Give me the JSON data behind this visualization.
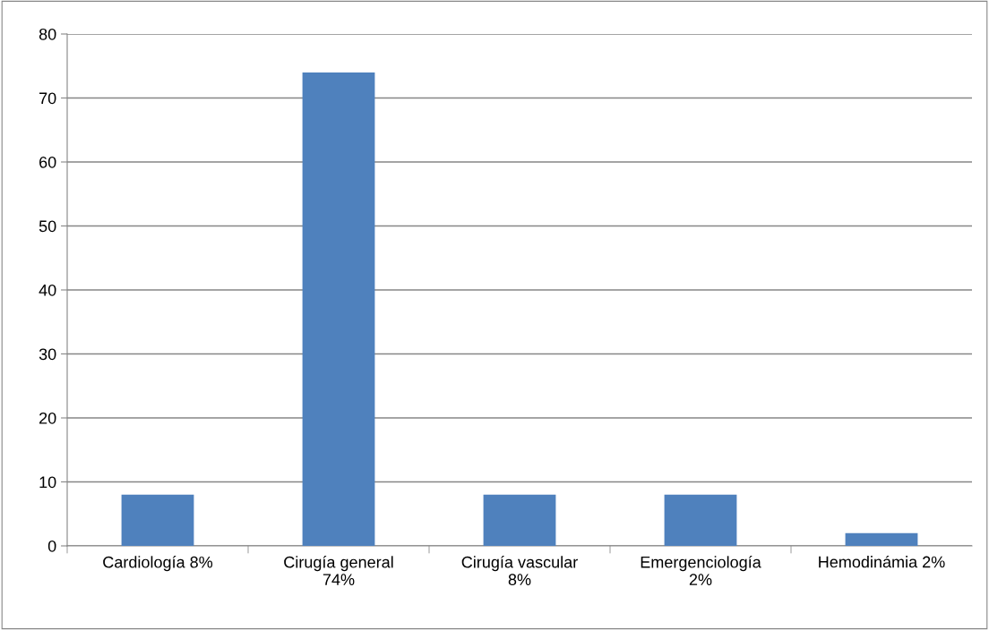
{
  "chart_data": {
    "type": "bar",
    "categories": [
      "Cardiología 8%",
      "Cirugía general 74%",
      "Cirugía vascular 8%",
      "Emergenciología 2%",
      "Hemodinámia 2%"
    ],
    "values": [
      8,
      74,
      8,
      8,
      2
    ],
    "color": "#4f81bd",
    "ylim": [
      0,
      80
    ],
    "yticks": [
      0,
      10,
      20,
      30,
      40,
      50,
      60,
      70,
      80
    ],
    "grid": "y",
    "legend": false
  }
}
